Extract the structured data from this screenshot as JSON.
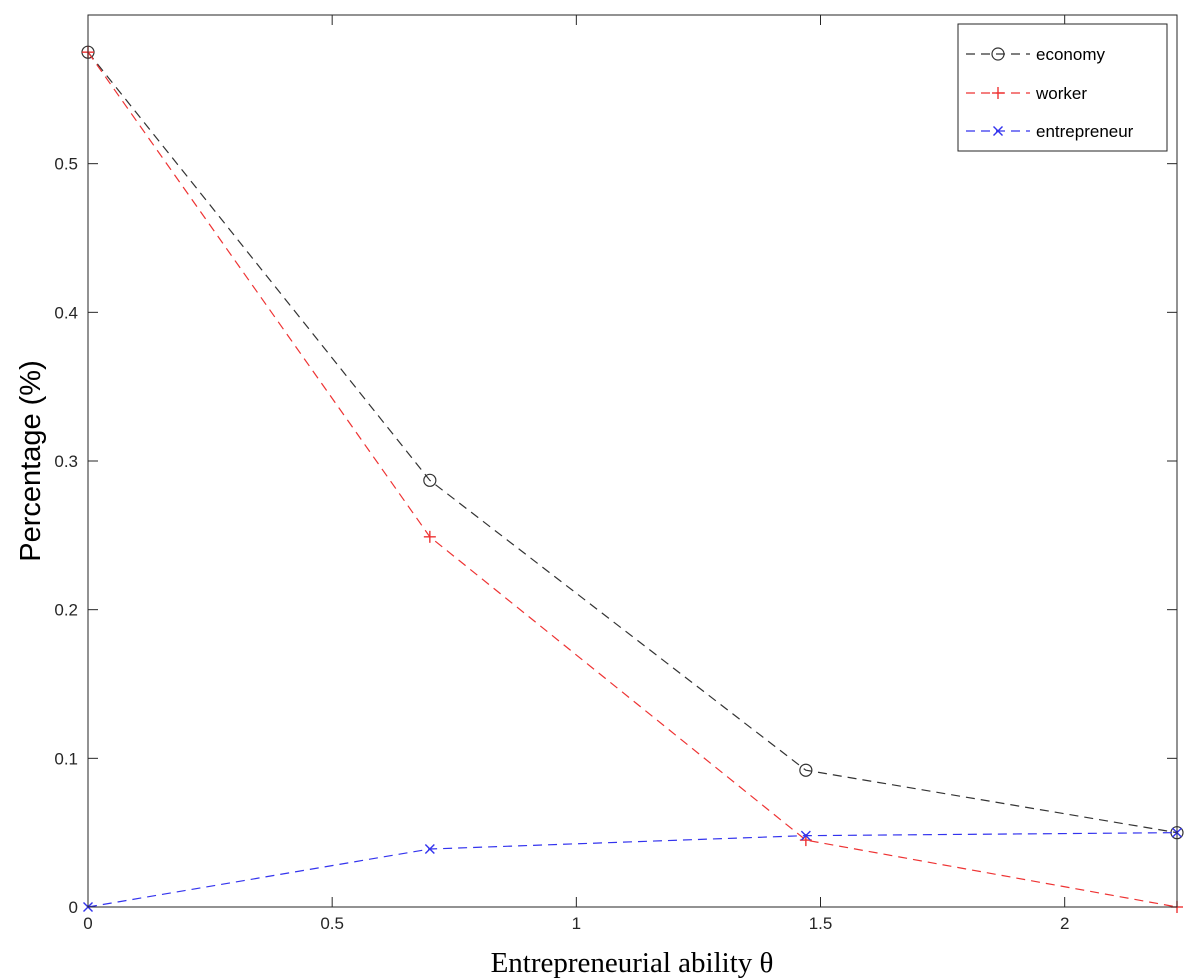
{
  "chart_data": {
    "type": "line",
    "xlabel": "Entrepreneurial ability θ",
    "ylabel": "Percentage (%)",
    "xlim": [
      0,
      2.23
    ],
    "ylim": [
      0,
      0.6
    ],
    "xticks": [
      0,
      0.5,
      1,
      1.5,
      2
    ],
    "xtick_labels": [
      "0",
      "0.5",
      "1",
      "1.5",
      "2"
    ],
    "yticks": [
      0,
      0.1,
      0.2,
      0.3,
      0.4,
      0.5
    ],
    "ytick_labels": [
      "0",
      "0.1",
      "0.2",
      "0.3",
      "0.4",
      "0.5"
    ],
    "grid": false,
    "legend_position": "top-right",
    "x": [
      0,
      0.7,
      1.47,
      2.23
    ],
    "series": [
      {
        "name": "economy",
        "values": [
          0.575,
          0.287,
          0.092,
          0.05
        ],
        "color": "#333333",
        "marker": "circle",
        "linestyle": "dashed"
      },
      {
        "name": "worker",
        "values": [
          0.575,
          0.249,
          0.045,
          0.0
        ],
        "color": "#ee3333",
        "marker": "plus",
        "linestyle": "dashed"
      },
      {
        "name": "entrepreneur",
        "values": [
          0.0,
          0.039,
          0.048,
          0.05
        ],
        "color": "#3333ee",
        "marker": "x",
        "linestyle": "dashed"
      }
    ]
  }
}
